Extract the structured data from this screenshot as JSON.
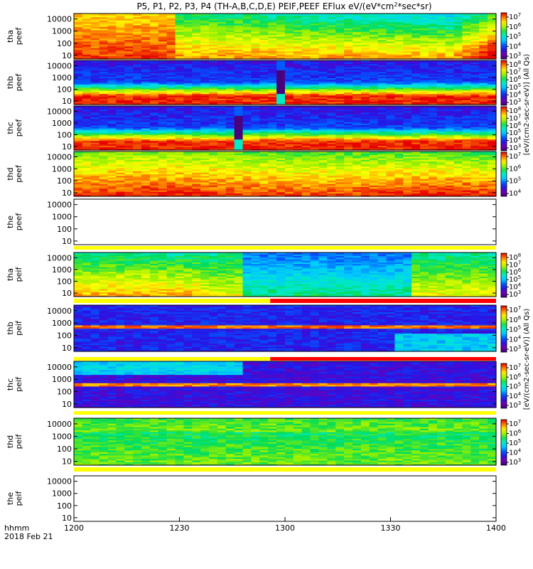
{
  "chart_data": {
    "type": "heatmap",
    "title": "P5, P1, P2, P3, P4 (TH-A,B,C,D,E) PEIF,PEEF EFlux eV/(eV*cm^2*sec*sr)",
    "title_parts": [
      "P5, P1, P2, P3, P4 (TH-A,B,C,D,E) PEIF,PEEF EFlux eV/(eV*cm",
      "2",
      "*sec*sr)"
    ],
    "x_axis": {
      "ticks": [
        "1200",
        "1230",
        "1300",
        "1330",
        "1400"
      ],
      "label_line1": "hhmm",
      "label_line2": "2018 Feb 21",
      "range": [
        "12:00",
        "14:00"
      ]
    },
    "y_ticks": [
      "10000",
      "1000",
      "100",
      "10"
    ],
    "y_log_range": [
      0.7,
      4.45
    ],
    "panels": [
      {
        "probe": "tha",
        "species": "peef",
        "label": [
          "tha",
          "peef"
        ],
        "profile": "e_hot",
        "gap": null
      },
      {
        "probe": "thb",
        "species": "peef",
        "label": [
          "thb",
          "peef"
        ],
        "profile": "e_sheath",
        "gap": [
          0.4815,
          0.5095
        ]
      },
      {
        "probe": "thc",
        "species": "peef",
        "label": [
          "thc",
          "peef"
        ],
        "profile": "e_sheath",
        "gap": [
          0.3785,
          0.4065
        ]
      },
      {
        "probe": "thd",
        "species": "peef",
        "label": [
          "thd",
          "peef"
        ],
        "profile": "e_hot2",
        "gap": null
      },
      {
        "probe": "the",
        "species": "peef",
        "label": [
          "the",
          "peef"
        ],
        "profile": "empty",
        "gap": null
      },
      {
        "probe": "tha",
        "species": "peif",
        "label": [
          "tha",
          "peif"
        ],
        "profile": "i_mid",
        "gap": null
      },
      {
        "probe": "thb",
        "species": "peif",
        "label": [
          "thb",
          "peif"
        ],
        "profile": "i_low",
        "gap": null
      },
      {
        "probe": "thc",
        "species": "peif",
        "label": [
          "thc",
          "peif"
        ],
        "profile": "i_low2",
        "gap": null
      },
      {
        "probe": "thd",
        "species": "peif",
        "label": [
          "thd",
          "peif"
        ],
        "profile": "i_green",
        "gap": null
      },
      {
        "probe": "the",
        "species": "peif",
        "label": [
          "the",
          "peif"
        ],
        "profile": "empty",
        "gap": null
      }
    ],
    "colorbars": [
      {
        "label": "[eV/(cm2-sec-sr-eV)] (All Qs)",
        "ticks": [
          "10^7",
          "10^6",
          "10^5",
          "10^4",
          "10^3"
        ]
      },
      {
        "label": "[eV/(cm2-sec-sr-eV)] (All Qs)",
        "ticks": [
          "10^8",
          "10^7",
          "10^6",
          "10^5",
          "10^4",
          "10^3"
        ]
      },
      {
        "label": "[eV/(cm2-sec-sr-eV)] (All Qs)",
        "ticks": [
          "10^8",
          "10^7",
          "10^6",
          "10^5",
          "10^4",
          "10^3"
        ]
      },
      {
        "label": "[eV/(cm2-sec-sr-eV)] (All Qs)",
        "ticks": [
          "10^7",
          "10^6",
          "10^5",
          "10^4"
        ]
      },
      {
        "label": "[eV/(cm2-sec-sr-eV)] (All Qs)",
        "ticks": [
          "10^8",
          "10^7",
          "10^6",
          "10^5",
          "10^4",
          "10^3"
        ]
      },
      {
        "label": "[eV/(cm2-sec-sr-eV)] (All Qs)",
        "ticks": [
          "10^7",
          "10^6",
          "10^5",
          "10^4",
          "10^3"
        ]
      },
      {
        "label": "[eV/(cm2-sec-sr-eV)] (All Qs)",
        "ticks": [
          "10^7",
          "10^6",
          "10^5",
          "10^4",
          "10^3"
        ]
      },
      {
        "label": "[eV/(cm2-sec-sr-eV)] (All Qs)",
        "ticks": [
          "10^7",
          "10^6",
          "10^5",
          "10^4",
          "10^3"
        ]
      }
    ],
    "colorbar_side_labels": [
      "[eV/(cm2-sec-sr-eV)] (All Qs)",
      "[eV/(cm2-sec-sr-eV)] (All Qs)"
    ],
    "flag_strips": [
      {
        "after_panel": 4,
        "color": "#ffff00"
      },
      {
        "after_panel": 5,
        "color": "#ffff00",
        "red_from": 0.465
      },
      {
        "after_panel": 6,
        "color": "#ffff00",
        "red_from": 0.465
      },
      {
        "after_panel": 7,
        "color": "#ffff00"
      },
      {
        "after_panel": 8,
        "color": "#ffff00"
      }
    ],
    "colormap": "rainbow (purple-blue-cyan-green-yellow-red)"
  }
}
